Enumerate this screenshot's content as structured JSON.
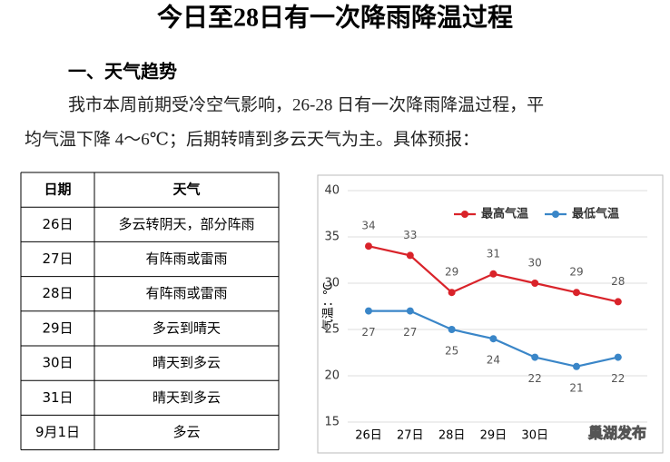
{
  "title": "今日至28日有一次降雨降温过程",
  "section": "一、天气趋势",
  "paragraph_lines": [
    "我市本周前期受冷空气影响，26-28 日有一次降雨降温过程，平",
    "均气温下降 4～6℃；后期转晴到多云天气为主。具体预报："
  ],
  "table": {
    "header": [
      "日期",
      "天气"
    ],
    "rows": [
      [
        "26日",
        "多云转阴天，部分阵雨"
      ],
      [
        "27日",
        "有阵雨或雷雨"
      ],
      [
        "28日",
        "有阵雨或雷雨"
      ],
      [
        "29日",
        "多云到晴天"
      ],
      [
        "30日",
        "晴天到多云"
      ],
      [
        "31日",
        "晴天到多云"
      ],
      [
        "9月1日",
        "多云"
      ]
    ]
  },
  "watermark": "巢湖发布",
  "chart_data": {
    "type": "line",
    "y_label": "气温：℃",
    "categories": [
      "26日",
      "27日",
      "28日",
      "29日",
      "30日",
      null,
      null
    ],
    "series": [
      {
        "name": "最高气温",
        "color": "#d9232a",
        "values": [
          34,
          33,
          29,
          31,
          30,
          29,
          28
        ]
      },
      {
        "name": "最低气温",
        "color": "#3a86c8",
        "values": [
          27,
          27,
          25,
          24,
          22,
          21,
          22
        ]
      }
    ],
    "ylim": [
      15,
      40
    ],
    "yticks": [
      15,
      20,
      25,
      30,
      35,
      40
    ],
    "grid": true,
    "legend": "top-right"
  }
}
